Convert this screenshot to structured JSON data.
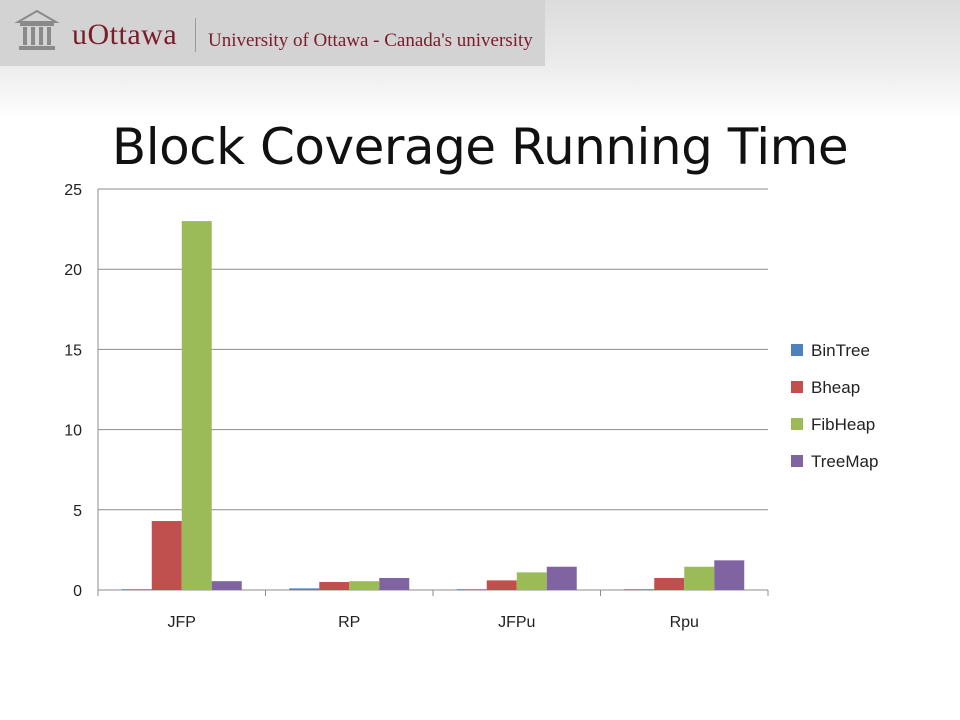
{
  "header": {
    "logo_wordmark": "uOttawa",
    "logo_tagline": "University of Ottawa - Canada's university"
  },
  "slide": {
    "title": "Block Coverage Running Time"
  },
  "chart_data": {
    "type": "bar",
    "title": "",
    "xlabel": "",
    "ylabel": "",
    "categories": [
      "JFP",
      "RP",
      "JFPu",
      "Rpu"
    ],
    "series": [
      {
        "name": "BinTree",
        "color": "#4f81bd",
        "values": [
          0.05,
          0.1,
          0.05,
          0.05
        ]
      },
      {
        "name": "Bheap",
        "color": "#c0504d",
        "values": [
          4.3,
          0.5,
          0.6,
          0.75
        ]
      },
      {
        "name": "FibHeap",
        "color": "#9bbb59",
        "values": [
          23.0,
          0.55,
          1.1,
          1.45
        ]
      },
      {
        "name": "TreeMap",
        "color": "#8064a2",
        "values": [
          0.55,
          0.75,
          1.45,
          1.85
        ]
      }
    ],
    "ylim": [
      0,
      25
    ],
    "yticks": [
      0,
      5,
      10,
      15,
      20,
      25
    ],
    "grid": true,
    "legend": "right"
  }
}
